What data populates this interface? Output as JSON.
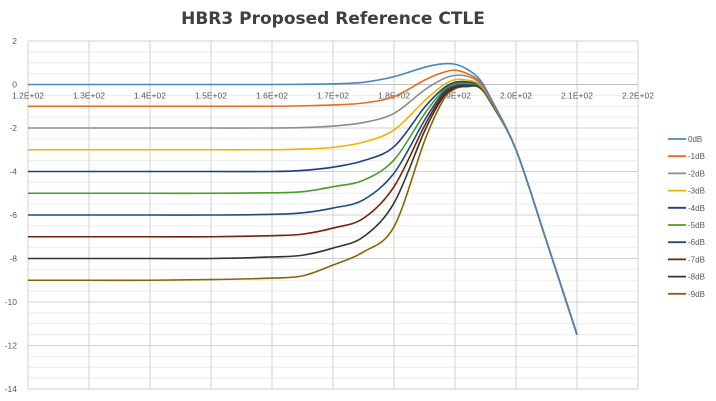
{
  "chart_data": {
    "type": "line",
    "title": "HBR3 Proposed Reference CTLE",
    "xlabel": "",
    "ylabel": "",
    "xlim": [
      120,
      220
    ],
    "ylim": [
      -14,
      2
    ],
    "x_ticks": [
      "1.2E+02",
      "1.3E+02",
      "1.4E+02",
      "1.5E+02",
      "1.6E+02",
      "1.7E+02",
      "1.8E+02",
      "1.9E+02",
      "2.0E+02",
      "2.1E+02",
      "2.2E+02"
    ],
    "y_ticks": [
      "2",
      "0",
      "-2",
      "-4",
      "-6",
      "-8",
      "-10",
      "-12",
      "-14"
    ],
    "grid": true,
    "legend_position": "right",
    "x": [
      120,
      130,
      140,
      150,
      160,
      165,
      170,
      175,
      180,
      185,
      188,
      190,
      192,
      194,
      196,
      200,
      205,
      210
    ],
    "series": [
      {
        "name": "0dB",
        "color": "#4A86C5",
        "values": [
          0,
          0,
          0,
          0,
          0,
          0.01,
          0.03,
          0.1,
          0.36,
          0.79,
          0.95,
          0.93,
          0.7,
          0.25,
          -0.7,
          -3.0,
          -7.2,
          -11.5
        ]
      },
      {
        "name": "-1dB",
        "color": "#E46C1E",
        "values": [
          -1,
          -1,
          -1,
          -1,
          -1,
          -0.98,
          -0.94,
          -0.85,
          -0.56,
          0.2,
          0.55,
          0.66,
          0.5,
          0.15,
          -0.75,
          -3.0,
          -7.2,
          -11.5
        ]
      },
      {
        "name": "-2dB",
        "color": "#8C8C8C",
        "values": [
          -2,
          -2,
          -2,
          -2,
          -2,
          -1.98,
          -1.91,
          -1.75,
          -1.33,
          -0.25,
          0.25,
          0.42,
          0.38,
          0.08,
          -0.78,
          -3.0,
          -7.2,
          -11.5
        ]
      },
      {
        "name": "-3dB",
        "color": "#F2B200",
        "values": [
          -3,
          -3,
          -3,
          -3,
          -3,
          -2.97,
          -2.89,
          -2.65,
          -2.09,
          -0.75,
          -0.05,
          0.22,
          0.2,
          0.0,
          -0.8,
          -3.0,
          -7.2,
          -11.5
        ]
      },
      {
        "name": "-4dB",
        "color": "#1F3C88",
        "values": [
          -4,
          -4,
          -4,
          -4,
          -4,
          -3.95,
          -3.8,
          -3.5,
          -2.86,
          -1.05,
          -0.2,
          0.1,
          0.12,
          -0.03,
          -0.82,
          -3.0,
          -7.2,
          -11.5
        ]
      },
      {
        "name": "-5dB",
        "color": "#4E9A2A",
        "values": [
          -5,
          -5,
          -5,
          -5,
          -4.98,
          -4.93,
          -4.7,
          -4.4,
          -3.47,
          -1.35,
          -0.3,
          0.02,
          0.05,
          -0.06,
          -0.84,
          -3.0,
          -7.2,
          -11.5
        ]
      },
      {
        "name": "-6dB",
        "color": "#1A4E80",
        "values": [
          -6,
          -6,
          -6,
          -6,
          -5.97,
          -5.9,
          -5.68,
          -5.3,
          -4.08,
          -1.65,
          -0.4,
          -0.05,
          0.0,
          -0.08,
          -0.86,
          -3.0,
          -7.2,
          -11.5
        ]
      },
      {
        "name": "-7dB",
        "color": "#7A1F0A",
        "values": [
          -7,
          -7,
          -7,
          -7,
          -6.95,
          -6.88,
          -6.6,
          -6.15,
          -4.7,
          -1.9,
          -0.5,
          -0.1,
          -0.03,
          -0.1,
          -0.87,
          -3.0,
          -7.2,
          -11.5
        ]
      },
      {
        "name": "-8dB",
        "color": "#333333",
        "values": [
          -8,
          -8,
          -8,
          -8,
          -7.93,
          -7.85,
          -7.52,
          -7.0,
          -5.45,
          -2.15,
          -0.6,
          -0.15,
          -0.07,
          -0.12,
          -0.88,
          -3.0,
          -7.2,
          -11.5
        ]
      },
      {
        "name": "-9dB",
        "color": "#8A6400",
        "values": [
          -9,
          -9,
          -9,
          -8.97,
          -8.9,
          -8.8,
          -8.3,
          -7.7,
          -6.54,
          -2.6,
          -0.75,
          -0.2,
          -0.1,
          -0.14,
          -0.9,
          -3.0,
          -7.2,
          -11.5
        ]
      }
    ]
  }
}
